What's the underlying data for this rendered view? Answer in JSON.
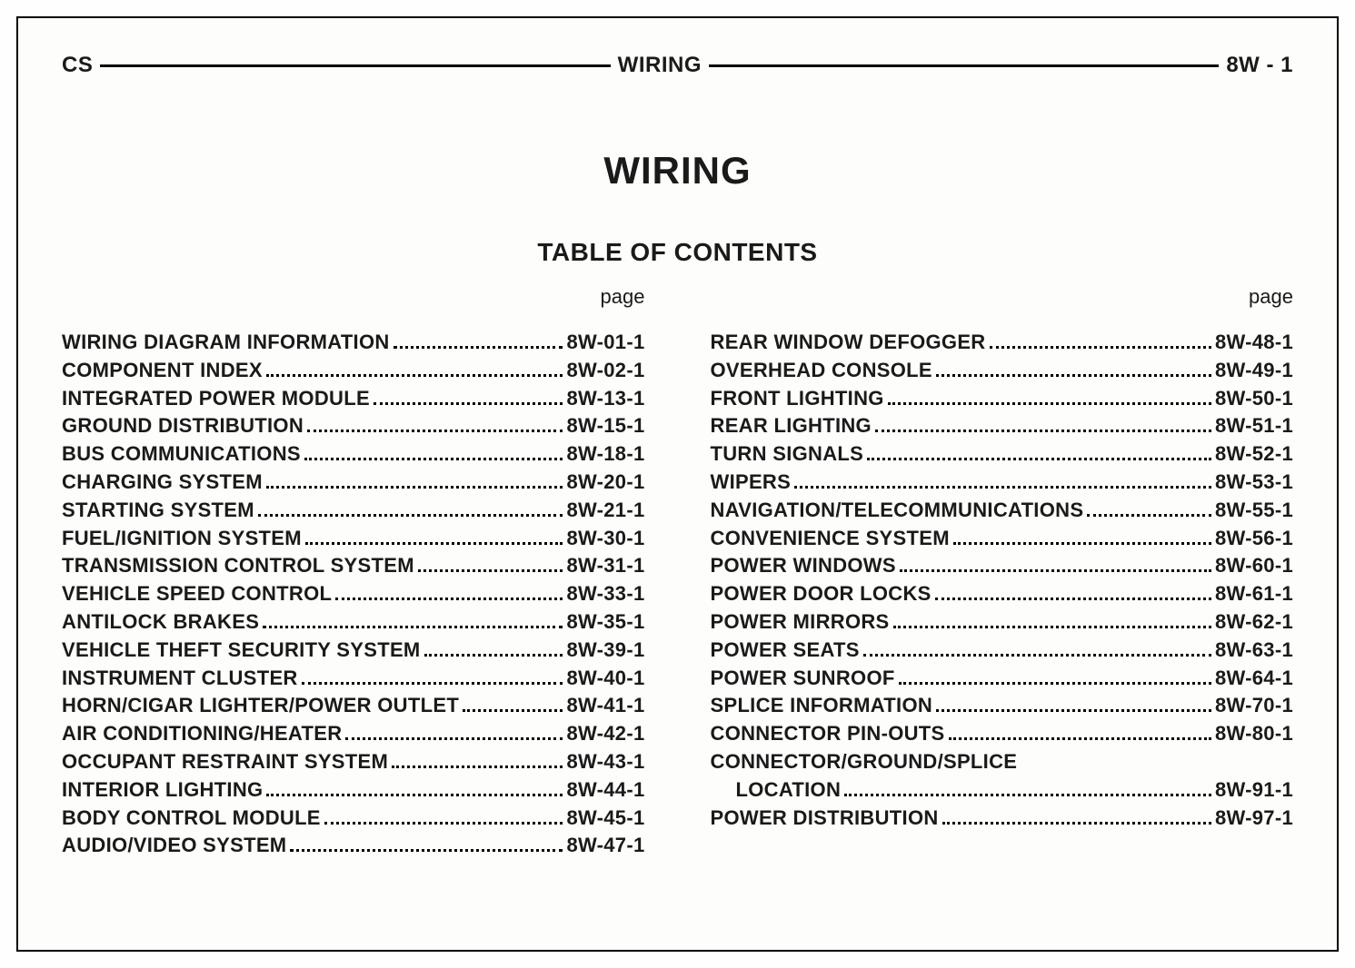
{
  "header": {
    "left": "CS",
    "center": "WIRING",
    "right": "8W - 1"
  },
  "title": "WIRING",
  "subtitle": "TABLE OF CONTENTS",
  "page_label": "page",
  "left_col": [
    {
      "label": "WIRING DIAGRAM INFORMATION",
      "page": "8W-01-1"
    },
    {
      "label": "COMPONENT INDEX",
      "page": "8W-02-1"
    },
    {
      "label": "INTEGRATED POWER MODULE",
      "page": "8W-13-1"
    },
    {
      "label": "GROUND DISTRIBUTION",
      "page": "8W-15-1"
    },
    {
      "label": "BUS COMMUNICATIONS",
      "page": "8W-18-1"
    },
    {
      "label": "CHARGING SYSTEM",
      "page": "8W-20-1"
    },
    {
      "label": "STARTING SYSTEM",
      "page": "8W-21-1"
    },
    {
      "label": "FUEL/IGNITION SYSTEM",
      "page": "8W-30-1"
    },
    {
      "label": "TRANSMISSION CONTROL SYSTEM",
      "page": "8W-31-1"
    },
    {
      "label": "VEHICLE SPEED CONTROL",
      "page": "8W-33-1"
    },
    {
      "label": "ANTILOCK BRAKES",
      "page": "8W-35-1"
    },
    {
      "label": "VEHICLE THEFT SECURITY SYSTEM",
      "page": "8W-39-1"
    },
    {
      "label": "INSTRUMENT CLUSTER",
      "page": "8W-40-1"
    },
    {
      "label": "HORN/CIGAR LIGHTER/POWER OUTLET",
      "page": "8W-41-1"
    },
    {
      "label": "AIR CONDITIONING/HEATER",
      "page": "8W-42-1"
    },
    {
      "label": "OCCUPANT RESTRAINT SYSTEM",
      "page": "8W-43-1"
    },
    {
      "label": "INTERIOR LIGHTING",
      "page": "8W-44-1"
    },
    {
      "label": "BODY CONTROL MODULE",
      "page": "8W-45-1"
    },
    {
      "label": "AUDIO/VIDEO SYSTEM",
      "page": "8W-47-1"
    }
  ],
  "right_col": [
    {
      "label": "REAR WINDOW DEFOGGER",
      "page": "8W-48-1"
    },
    {
      "label": "OVERHEAD CONSOLE",
      "page": "8W-49-1"
    },
    {
      "label": "FRONT LIGHTING",
      "page": "8W-50-1"
    },
    {
      "label": "REAR LIGHTING",
      "page": "8W-51-1"
    },
    {
      "label": "TURN SIGNALS",
      "page": "8W-52-1"
    },
    {
      "label": "WIPERS",
      "page": "8W-53-1"
    },
    {
      "label": "NAVIGATION/TELECOMMUNICATIONS",
      "page": "8W-55-1"
    },
    {
      "label": "CONVENIENCE SYSTEM",
      "page": "8W-56-1"
    },
    {
      "label": "POWER WINDOWS",
      "page": "8W-60-1"
    },
    {
      "label": "POWER DOOR LOCKS",
      "page": "8W-61-1"
    },
    {
      "label": "POWER MIRRORS",
      "page": "8W-62-1"
    },
    {
      "label": "POWER SEATS",
      "page": "8W-63-1"
    },
    {
      "label": "POWER SUNROOF",
      "page": "8W-64-1"
    },
    {
      "label": "SPLICE INFORMATION",
      "page": "8W-70-1"
    },
    {
      "label": "CONNECTOR PIN-OUTS",
      "page": "8W-80-1"
    },
    {
      "label": "CONNECTOR/GROUND/SPLICE",
      "page": "",
      "noval": true
    },
    {
      "label": "LOCATION",
      "page": "8W-91-1",
      "indent": true
    },
    {
      "label": "POWER DISTRIBUTION",
      "page": "8W-97-1"
    }
  ],
  "style": {
    "text_color": "#1a1a1a",
    "background_color": "#fdfdfb",
    "border_color": "#000000",
    "title_fontsize": 42,
    "subtitle_fontsize": 28,
    "entry_fontsize": 22,
    "header_fontsize": 24,
    "font_family": "Arial Narrow / Helvetica Condensed",
    "font_weight": 900
  }
}
